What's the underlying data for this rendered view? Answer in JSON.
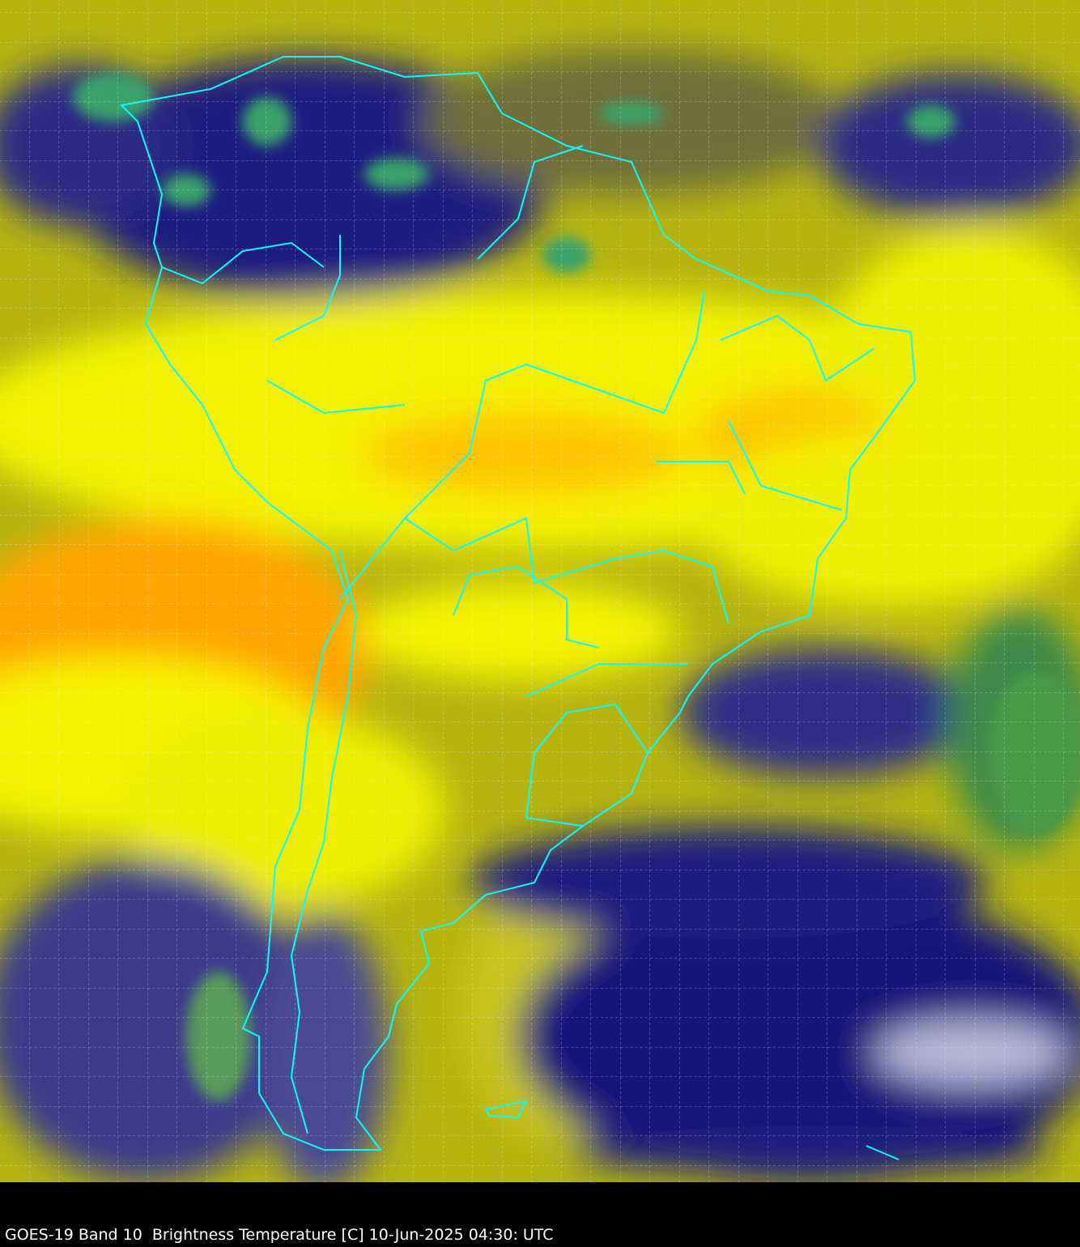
{
  "caption": "GOES-19 Band 10  Brightness Temperature [C] 10-Jun-2025 04:30: UTC",
  "imagery": {
    "satellite": "GOES-19",
    "band": "Band 10",
    "product": "Brightness Temperature [C]",
    "datetime": "10-Jun-2025 04:30: UTC",
    "colors": {
      "cold_cloud": "#14147d",
      "very_cold": "#ffffff",
      "coldest": "#3aa36a",
      "moist": "#8a8a2a",
      "dry": "#f5f500",
      "very_dry": "#ffa000",
      "coastline": "#00ffff",
      "background": "#000000"
    },
    "gridlines": true
  }
}
